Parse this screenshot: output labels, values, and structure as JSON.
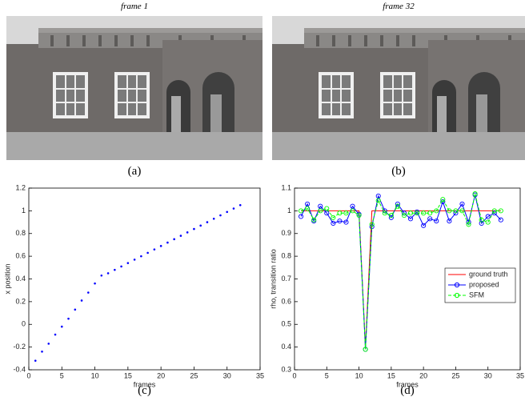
{
  "panels": [
    {
      "frame_label": "frame 1",
      "caption": "(a)"
    },
    {
      "frame_label": "frame 32",
      "caption": "(b)"
    }
  ],
  "chart_data": [
    {
      "type": "scatter",
      "caption": "(c)",
      "xlabel": "frames",
      "ylabel": "x position",
      "color": "#0000ff",
      "x": [
        1,
        2,
        3,
        4,
        5,
        6,
        7,
        8,
        9,
        10,
        11,
        12,
        13,
        14,
        15,
        16,
        17,
        18,
        19,
        20,
        21,
        22,
        23,
        24,
        25,
        26,
        27,
        28,
        29,
        30,
        31,
        32
      ],
      "values": [
        -0.32,
        -0.24,
        -0.17,
        -0.09,
        -0.02,
        0.05,
        0.13,
        0.21,
        0.28,
        0.36,
        0.43,
        0.45,
        0.48,
        0.51,
        0.54,
        0.57,
        0.6,
        0.63,
        0.66,
        0.69,
        0.72,
        0.75,
        0.78,
        0.81,
        0.84,
        0.87,
        0.9,
        0.93,
        0.96,
        0.99,
        1.02,
        1.05
      ],
      "xlim": [
        0,
        35
      ],
      "xticks": [
        0,
        5,
        10,
        15,
        20,
        25,
        30,
        35
      ],
      "ylim": [
        -0.4,
        1.2
      ],
      "yticks": [
        -0.4,
        -0.2,
        0,
        0.2,
        0.4,
        0.6,
        0.8,
        1,
        1.2
      ]
    },
    {
      "type": "line",
      "caption": "(d)",
      "xlabel": "frames",
      "ylabel": "rho, transition ratio",
      "legend": "right",
      "x": [
        1,
        2,
        3,
        4,
        5,
        6,
        7,
        8,
        9,
        10,
        11,
        12,
        13,
        14,
        15,
        16,
        17,
        18,
        19,
        20,
        21,
        22,
        23,
        24,
        25,
        26,
        27,
        28,
        29,
        30,
        31,
        32
      ],
      "series": [
        {
          "name": "ground truth",
          "color": "#ff0000",
          "marker": false,
          "dashed": false,
          "values": [
            1,
            1,
            1,
            1,
            1,
            1,
            1,
            1,
            1,
            1,
            0.4,
            1,
            1,
            1,
            1,
            1,
            1,
            1,
            1,
            1,
            1,
            1,
            1,
            1,
            1,
            1,
            1,
            1,
            1,
            1,
            1,
            1
          ]
        },
        {
          "name": "proposed",
          "color": "#0000ff",
          "marker": true,
          "dashed": false,
          "values": [
            0.975,
            1.03,
            0.955,
            1.02,
            0.99,
            0.945,
            0.955,
            0.95,
            1.02,
            0.985,
            0.39,
            0.93,
            1.065,
            1.0,
            0.97,
            1.03,
            0.99,
            0.965,
            0.995,
            0.935,
            0.965,
            0.955,
            1.04,
            0.955,
            0.99,
            1.03,
            0.95,
            1.07,
            0.945,
            0.975,
            0.99,
            0.96
          ]
        },
        {
          "name": "SFM",
          "color": "#00ff00",
          "marker": true,
          "dashed": true,
          "values": [
            1.0,
            1.01,
            0.96,
            1.0,
            1.01,
            0.97,
            0.99,
            0.99,
            1.0,
            0.98,
            0.39,
            0.94,
            1.045,
            0.99,
            0.98,
            1.02,
            0.98,
            0.99,
            0.99,
            0.99,
            0.99,
            1.0,
            1.05,
            1.0,
            1.0,
            1.0,
            0.94,
            1.075,
            0.96,
            0.95,
            1.0,
            1.0
          ]
        }
      ],
      "xlim": [
        0,
        35
      ],
      "xticks": [
        0,
        5,
        10,
        15,
        20,
        25,
        30,
        35
      ],
      "ylim": [
        0.3,
        1.1
      ],
      "yticks": [
        0.3,
        0.4,
        0.5,
        0.6,
        0.7,
        0.8,
        0.9,
        1,
        1.1
      ]
    }
  ]
}
